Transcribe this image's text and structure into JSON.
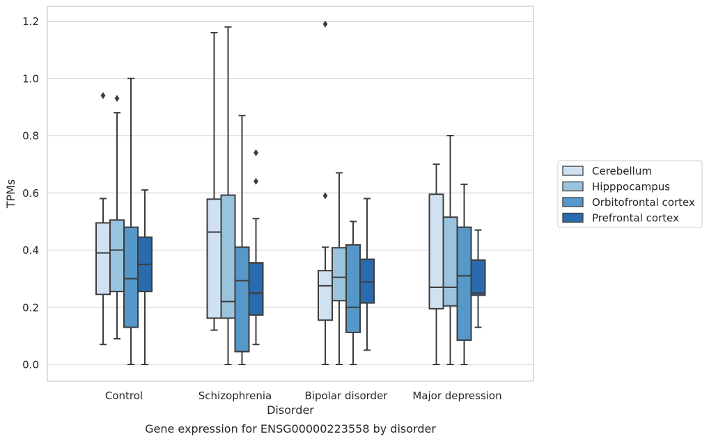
{
  "chart_data": {
    "type": "box",
    "title": "",
    "caption": "Gene expression for ENSG00000223558 by disorder",
    "xlabel": "Disorder",
    "ylabel": "TPMs",
    "ylim": [
      -0.058,
      1.25
    ],
    "yticks": [
      0.0,
      0.2,
      0.4,
      0.6,
      0.8,
      1.0,
      1.2
    ],
    "ytick_labels": [
      "0.0",
      "0.2",
      "0.4",
      "0.6",
      "0.8",
      "1.0",
      "1.2"
    ],
    "grid": "horizontal",
    "legend_position": "right",
    "categories": [
      "Control",
      "Schizophrenia",
      "Bipolar disorder",
      "Major depression"
    ],
    "series": [
      {
        "name": "Cerebellum",
        "color": "#d0e1f2",
        "boxes": [
          {
            "whislo": 0.07,
            "q1": 0.245,
            "med": 0.39,
            "q3": 0.495,
            "whishi": 0.58,
            "fliers": [
              0.94
            ]
          },
          {
            "whislo": 0.12,
            "q1": 0.162,
            "med": 0.463,
            "q3": 0.578,
            "whishi": 1.16,
            "fliers": []
          },
          {
            "whislo": 0.0,
            "q1": 0.155,
            "med": 0.275,
            "q3": 0.328,
            "whishi": 0.41,
            "fliers": [
              0.59,
              1.19
            ]
          },
          {
            "whislo": 0.0,
            "q1": 0.195,
            "med": 0.27,
            "q3": 0.595,
            "whishi": 0.7,
            "fliers": []
          }
        ]
      },
      {
        "name": "Hipppocampus",
        "color": "#9ac4de",
        "boxes": [
          {
            "whislo": 0.09,
            "q1": 0.255,
            "med": 0.4,
            "q3": 0.505,
            "whishi": 0.88,
            "fliers": [
              0.93
            ]
          },
          {
            "whislo": 0.0,
            "q1": 0.162,
            "med": 0.22,
            "q3": 0.592,
            "whishi": 1.18,
            "fliers": []
          },
          {
            "whislo": 0.0,
            "q1": 0.223,
            "med": 0.305,
            "q3": 0.408,
            "whishi": 0.67,
            "fliers": []
          },
          {
            "whislo": 0.0,
            "q1": 0.205,
            "med": 0.27,
            "q3": 0.515,
            "whishi": 0.8,
            "fliers": []
          }
        ]
      },
      {
        "name": "Orbitofrontal cortex",
        "color": "#5598c9",
        "boxes": [
          {
            "whislo": 0.0,
            "q1": 0.13,
            "med": 0.3,
            "q3": 0.48,
            "whishi": 1.0,
            "fliers": []
          },
          {
            "whislo": 0.0,
            "q1": 0.045,
            "med": 0.293,
            "q3": 0.41,
            "whishi": 0.87,
            "fliers": []
          },
          {
            "whislo": 0.0,
            "q1": 0.112,
            "med": 0.2,
            "q3": 0.418,
            "whishi": 0.5,
            "fliers": []
          },
          {
            "whislo": 0.0,
            "q1": 0.085,
            "med": 0.31,
            "q3": 0.48,
            "whishi": 0.63,
            "fliers": []
          }
        ]
      },
      {
        "name": "Prefrontal cortex",
        "color": "#2a6bad",
        "boxes": [
          {
            "whislo": 0.0,
            "q1": 0.255,
            "med": 0.35,
            "q3": 0.445,
            "whishi": 0.61,
            "fliers": []
          },
          {
            "whislo": 0.07,
            "q1": 0.173,
            "med": 0.25,
            "q3": 0.355,
            "whishi": 0.51,
            "fliers": [
              0.64,
              0.74
            ]
          },
          {
            "whislo": 0.05,
            "q1": 0.215,
            "med": 0.288,
            "q3": 0.368,
            "whishi": 0.58,
            "fliers": []
          },
          {
            "whislo": 0.13,
            "q1": 0.242,
            "med": 0.25,
            "q3": 0.365,
            "whishi": 0.47,
            "fliers": []
          }
        ]
      }
    ]
  }
}
